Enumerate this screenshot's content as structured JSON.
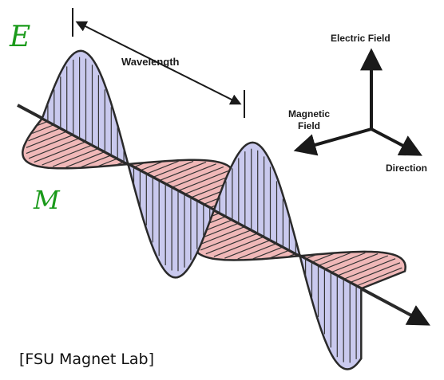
{
  "handwritten": {
    "e_mark": "E",
    "m_mark": "M"
  },
  "labels": {
    "wavelength": "Wavelength",
    "electric_field": "Electric Field",
    "magnetic_field_line1": "Magnetic",
    "magnetic_field_line2": "Field",
    "direction": "Direction"
  },
  "caption": "[FSU Magnet Lab]",
  "colors": {
    "electric_fill": "#c9c9ee",
    "magnetic_fill": "#f0b8b8",
    "outline": "#2a2a2a",
    "hand_ink": "#1a9a1a"
  }
}
